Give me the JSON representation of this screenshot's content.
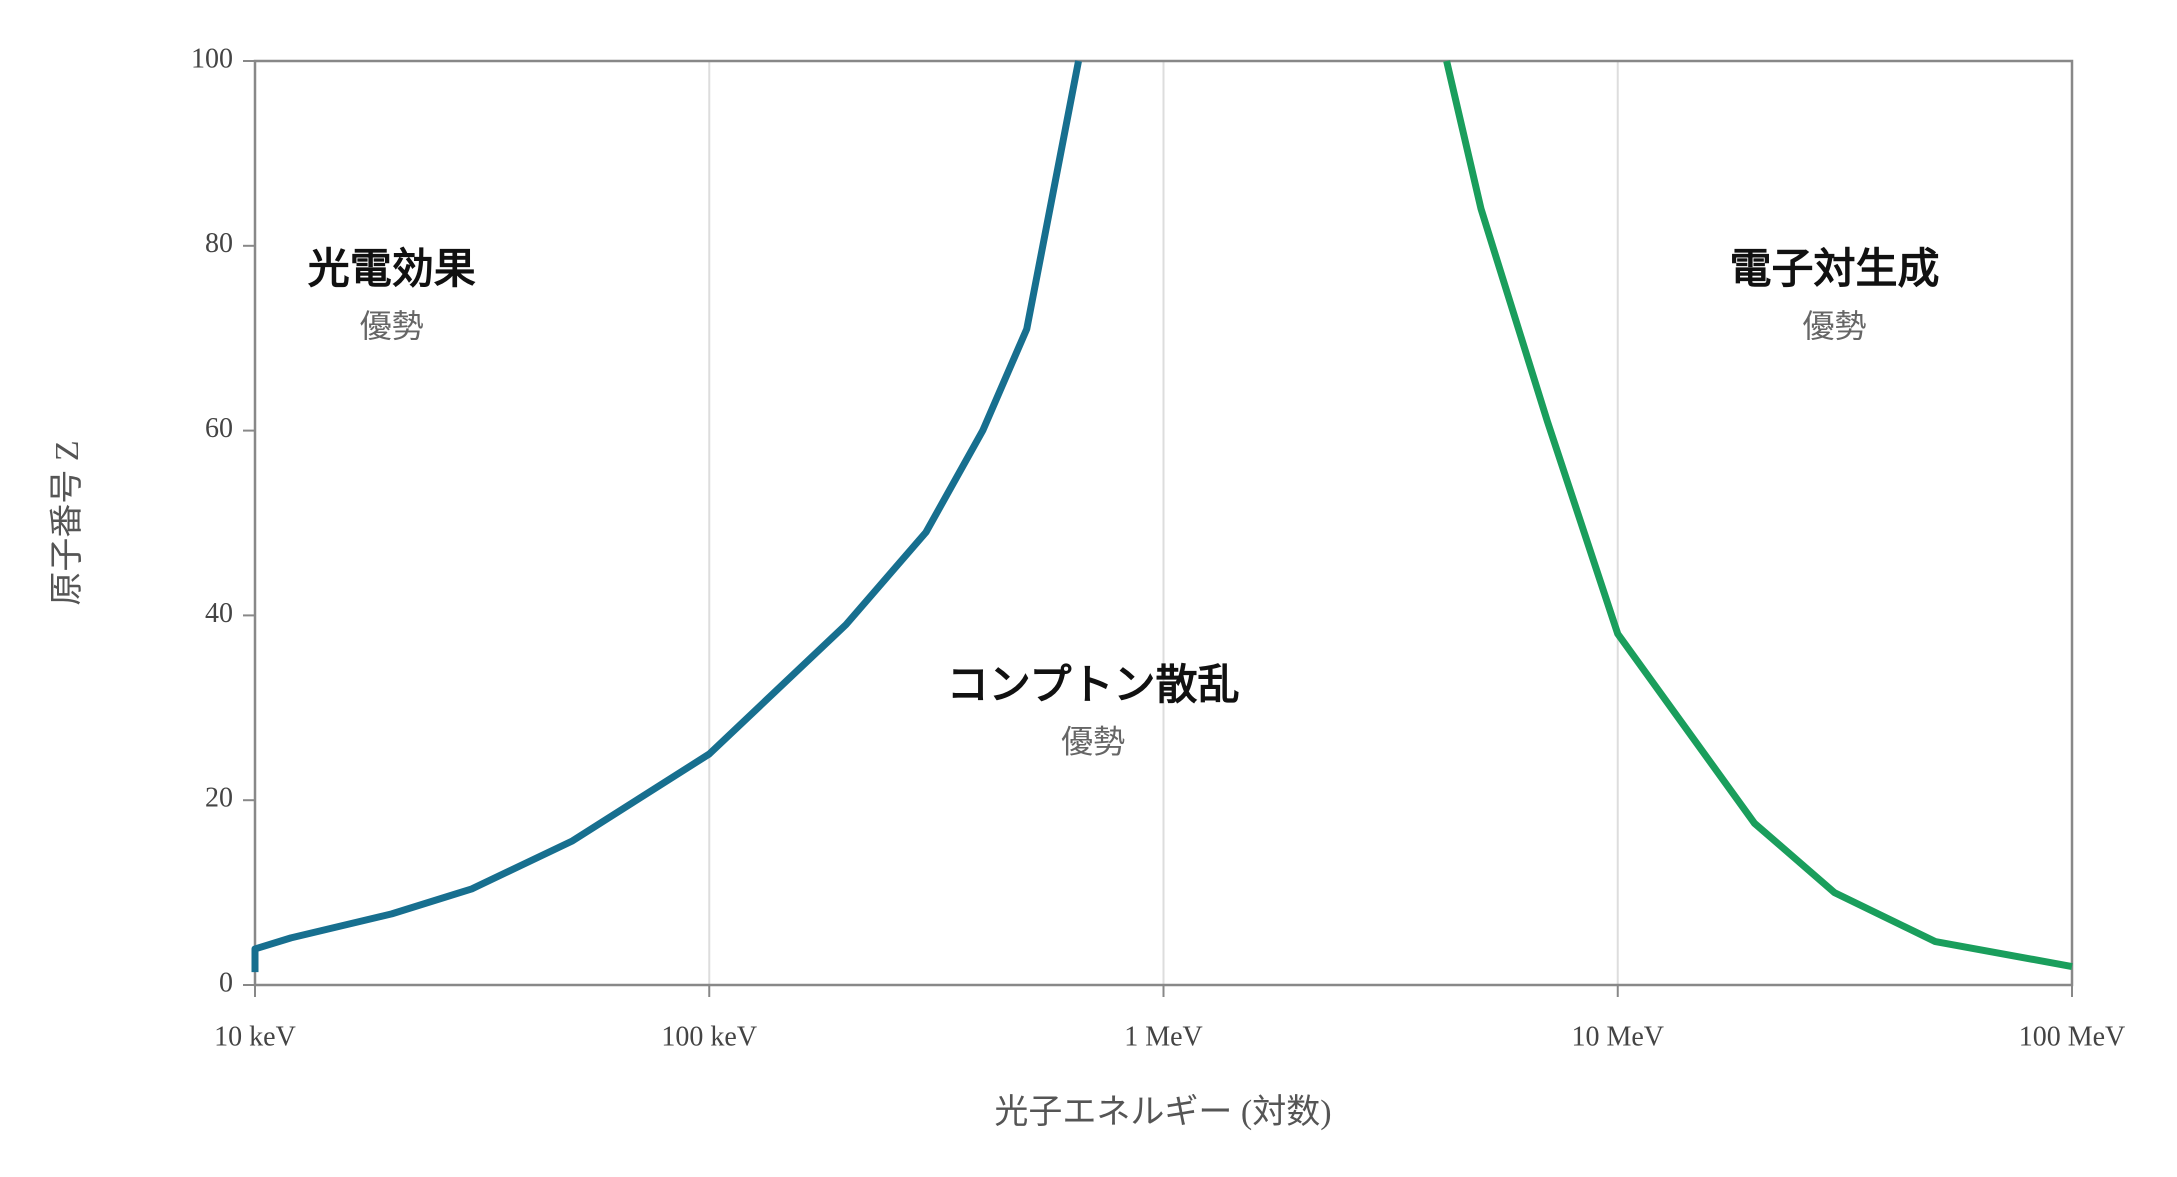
{
  "chart_data": {
    "type": "line",
    "xlabel": "光子エネルギー (対数)",
    "ylabel": "原子番号 Z",
    "xscale": "log",
    "xlim": [
      10,
      100000
    ],
    "xticks": [
      {
        "value": 10,
        "label": "10 keV"
      },
      {
        "value": 100,
        "label": "100 keV"
      },
      {
        "value": 1000,
        "label": "1 MeV"
      },
      {
        "value": 10000,
        "label": "10 MeV"
      },
      {
        "value": 100000,
        "label": "100 MeV"
      }
    ],
    "ylim": [
      0,
      100
    ],
    "yticks": [
      0,
      20,
      40,
      60,
      80,
      100
    ],
    "grid": true,
    "lines": [
      {
        "color": "#176f8f",
        "x": [
          10,
          10,
          12,
          20,
          30,
          50,
          100,
          200,
          300,
          400,
          500,
          650
        ],
        "values": [
          1.4,
          3.9,
          5.1,
          7.7,
          10.4,
          15.6,
          25,
          39,
          49,
          60,
          71,
          100
        ]
      },
      {
        "color": "#1a9e5c",
        "x": [
          4200,
          5000,
          7000,
          10000,
          20000,
          30000,
          50000,
          100000
        ],
        "values": [
          100,
          84,
          61,
          38,
          17.5,
          10,
          4.7,
          2
        ]
      }
    ],
    "annotations": [
      {
        "x": 20,
        "y": 77,
        "text": "光電効果",
        "subtext": "優勢"
      },
      {
        "x": 700,
        "y": 32,
        "text": "コンプトン散乱",
        "subtext": "優勢"
      },
      {
        "x": 30000,
        "y": 77,
        "text": "電子対生成",
        "subtext": "優勢"
      }
    ]
  }
}
